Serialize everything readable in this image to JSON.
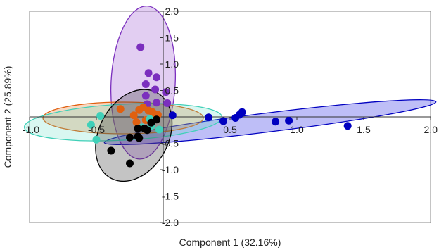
{
  "chart_data": {
    "type": "scatter",
    "title": "",
    "xlabel": "Component 1 (32.16%)",
    "ylabel": "Component 2 (25.89%)",
    "xlim": [
      -1.0,
      2.0
    ],
    "ylim": [
      -2.0,
      2.0
    ],
    "x_ticks": [
      "-1.0",
      "-0.5",
      "0.5",
      "1.0",
      "1.5",
      "2.0"
    ],
    "x_tick_values": [
      -1.0,
      -0.5,
      0.5,
      1.0,
      1.5,
      2.0
    ],
    "y_ticks": [
      "2.0",
      "1.5",
      "1.0",
      "0.5",
      "-0.5",
      "-1.0",
      "-1.5",
      "-2.0"
    ],
    "y_tick_values": [
      2.0,
      1.5,
      1.0,
      0.5,
      -0.5,
      -1.0,
      -1.5,
      -2.0
    ],
    "grid": false,
    "legend": "none",
    "series": [
      {
        "color": "#0000c0",
        "fill": "rgba(40,40,230,0.30)",
        "ellipse": {
          "cx": 0.8,
          "cy": -0.1,
          "rx": 1.25,
          "ry": 0.18,
          "angle_deg": -7
        },
        "points": [
          [
            0.07,
            0.03
          ],
          [
            0.34,
            -0.01
          ],
          [
            0.45,
            -0.08
          ],
          [
            0.54,
            -0.02
          ],
          [
            0.57,
            0.04
          ],
          [
            0.59,
            0.09
          ],
          [
            0.84,
            -0.09
          ],
          [
            0.94,
            -0.07
          ],
          [
            1.38,
            -0.17
          ]
        ]
      },
      {
        "color": "#7b2fbe",
        "fill": "rgba(150,80,210,0.28)",
        "ellipse": {
          "cx": -0.15,
          "cy": 0.65,
          "rx": 0.24,
          "ry": 1.45,
          "angle_deg": 3
        },
        "points": [
          [
            -0.17,
            1.32
          ],
          [
            -0.11,
            0.83
          ],
          [
            -0.05,
            0.75
          ],
          [
            -0.13,
            0.62
          ],
          [
            -0.06,
            0.52
          ],
          [
            0.02,
            0.47
          ],
          [
            -0.13,
            0.4
          ],
          [
            -0.05,
            0.27
          ],
          [
            0.03,
            0.26
          ],
          [
            -0.12,
            0.24
          ]
        ]
      },
      {
        "color": "#e06010",
        "fill": "rgba(230,120,40,0.28)",
        "ellipse": {
          "cx": -0.3,
          "cy": -0.02,
          "rx": 0.6,
          "ry": 0.3,
          "angle_deg": 0
        },
        "points": [
          [
            -0.32,
            0.15
          ],
          [
            -0.18,
            0.13
          ],
          [
            -0.15,
            0.18
          ],
          [
            -0.11,
            0.12
          ],
          [
            -0.08,
            0.09
          ],
          [
            -0.04,
            0.04
          ],
          [
            -0.22,
            0.03
          ],
          [
            -0.07,
            -0.03
          ],
          [
            -0.13,
            -0.06
          ],
          [
            -0.2,
            -0.1
          ]
        ]
      },
      {
        "color": "#40d0b8",
        "fill": "rgba(80,220,190,0.22)",
        "ellipse": {
          "cx": -0.3,
          "cy": -0.1,
          "rx": 0.74,
          "ry": 0.34,
          "angle_deg": -3
        },
        "points": [
          [
            -0.47,
            0.02
          ],
          [
            -0.54,
            -0.15
          ],
          [
            -0.5,
            -0.43
          ],
          [
            -0.16,
            -0.2
          ],
          [
            -0.09,
            -0.17
          ],
          [
            -0.03,
            -0.24
          ],
          [
            -0.1,
            -0.04
          ]
        ]
      },
      {
        "color": "#000000",
        "fill": "rgba(60,60,60,0.30)",
        "ellipse": {
          "cx": -0.22,
          "cy": -0.35,
          "rx": 0.26,
          "ry": 0.92,
          "angle_deg": 28
        },
        "points": [
          [
            -0.39,
            -0.64
          ],
          [
            -0.25,
            -0.88
          ],
          [
            -0.25,
            -0.39
          ],
          [
            -0.19,
            -0.37
          ],
          [
            -0.18,
            -0.4
          ],
          [
            -0.14,
            -0.22
          ],
          [
            -0.12,
            -0.25
          ],
          [
            -0.19,
            -0.22
          ],
          [
            -0.09,
            -0.11
          ],
          [
            -0.05,
            -0.05
          ]
        ]
      }
    ]
  }
}
